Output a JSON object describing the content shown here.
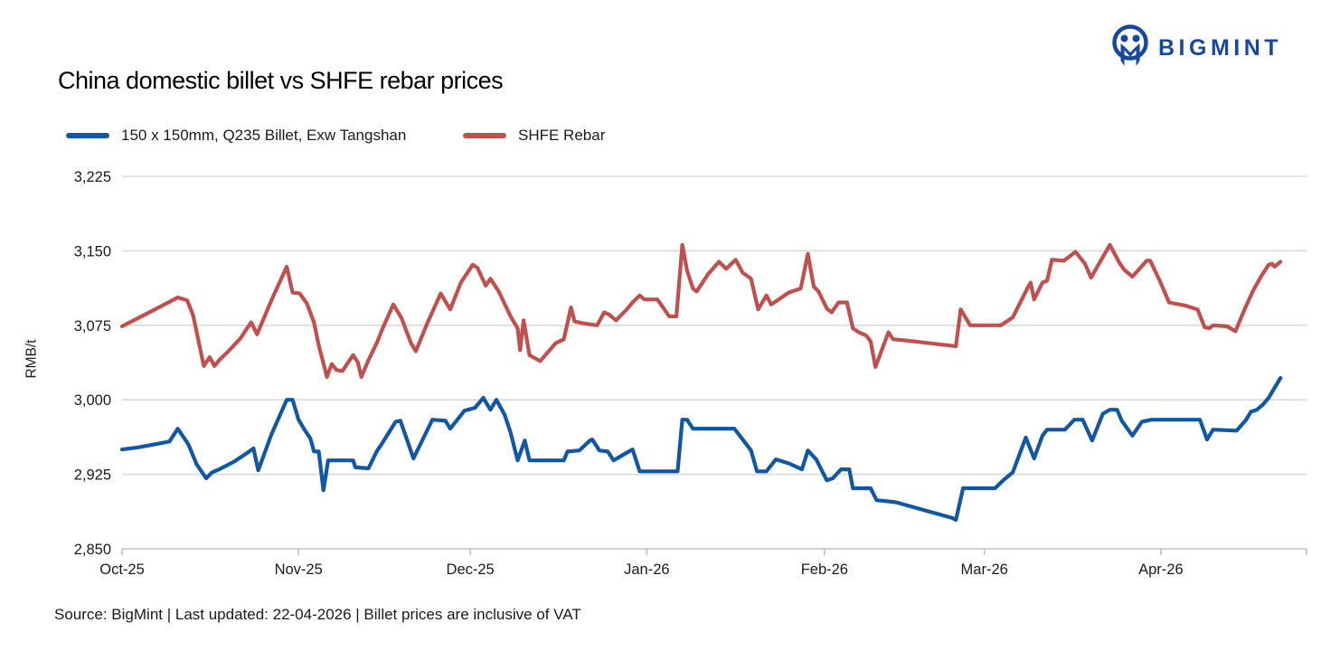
{
  "header": {
    "brand": "BIGMINT"
  },
  "footer": {
    "text": "Source: BigMint | Last updated: 22-04-2026 | Billet prices are inclusive of VAT"
  },
  "colors": {
    "brand_navy": "#17489F",
    "grid": "#D9D9D9",
    "axis": "#C2C2C2",
    "text": "#1A1A1A"
  },
  "chart_data": {
    "type": "line",
    "title": "China domestic billet vs SHFE rebar prices",
    "ylabel": "RMB/t",
    "ylim": [
      2850,
      3225
    ],
    "yticks": [
      2850,
      2925,
      3000,
      3075,
      3150,
      3225
    ],
    "ytick_labels": [
      "2,850",
      "2,925",
      "3,000",
      "3,075",
      "3,150",
      "3,225"
    ],
    "xticks": [
      {
        "label": "Oct-25",
        "pos": 0.0
      },
      {
        "label": "Nov-25",
        "pos": 0.149
      },
      {
        "label": "Dec-25",
        "pos": 0.294
      },
      {
        "label": "Jan-26",
        "pos": 0.443
      },
      {
        "label": "Feb-26",
        "pos": 0.593
      },
      {
        "label": "Mar-26",
        "pos": 0.728
      },
      {
        "label": "Apr-26",
        "pos": 0.877
      }
    ],
    "grid": "horizontal",
    "legend_position": "top-left",
    "x_unit": "fraction of x-axis, daily prices from Oct-25 through 22-04-2026",
    "series": [
      {
        "name": "150 x 150mm, Q235 Billet, Exw Tangshan",
        "color": "#1157A6",
        "points": [
          [
            0.0,
            2950
          ],
          [
            0.013,
            2952
          ],
          [
            0.027,
            2955
          ],
          [
            0.04,
            2958
          ],
          [
            0.047,
            2971
          ],
          [
            0.056,
            2955
          ],
          [
            0.063,
            2935
          ],
          [
            0.071,
            2921
          ],
          [
            0.076,
            2927
          ],
          [
            0.082,
            2930
          ],
          [
            0.095,
            2938
          ],
          [
            0.105,
            2946
          ],
          [
            0.111,
            2951
          ],
          [
            0.115,
            2929
          ],
          [
            0.126,
            2965
          ],
          [
            0.139,
            3000
          ],
          [
            0.144,
            3000
          ],
          [
            0.149,
            2980
          ],
          [
            0.154,
            2970
          ],
          [
            0.159,
            2961
          ],
          [
            0.162,
            2948
          ],
          [
            0.166,
            2948
          ],
          [
            0.17,
            2909
          ],
          [
            0.174,
            2939
          ],
          [
            0.195,
            2939
          ],
          [
            0.197,
            2932
          ],
          [
            0.208,
            2931
          ],
          [
            0.215,
            2948
          ],
          [
            0.22,
            2957
          ],
          [
            0.231,
            2978
          ],
          [
            0.235,
            2979
          ],
          [
            0.246,
            2941
          ],
          [
            0.262,
            2980
          ],
          [
            0.273,
            2979
          ],
          [
            0.277,
            2971
          ],
          [
            0.289,
            2989
          ],
          [
            0.298,
            2992
          ],
          [
            0.305,
            3002
          ],
          [
            0.311,
            2990
          ],
          [
            0.316,
            3000
          ],
          [
            0.323,
            2985
          ],
          [
            0.328,
            2967
          ],
          [
            0.334,
            2939
          ],
          [
            0.34,
            2959
          ],
          [
            0.344,
            2939
          ],
          [
            0.373,
            2939
          ],
          [
            0.376,
            2948
          ],
          [
            0.386,
            2949
          ],
          [
            0.395,
            2959
          ],
          [
            0.397,
            2960
          ],
          [
            0.403,
            2949
          ],
          [
            0.41,
            2948
          ],
          [
            0.415,
            2939
          ],
          [
            0.425,
            2946
          ],
          [
            0.431,
            2950
          ],
          [
            0.437,
            2928
          ],
          [
            0.469,
            2928
          ],
          [
            0.473,
            2980
          ],
          [
            0.477,
            2980
          ],
          [
            0.482,
            2971
          ],
          [
            0.517,
            2971
          ],
          [
            0.531,
            2949
          ],
          [
            0.536,
            2928
          ],
          [
            0.544,
            2928
          ],
          [
            0.552,
            2940
          ],
          [
            0.563,
            2936
          ],
          [
            0.574,
            2930
          ],
          [
            0.579,
            2949
          ],
          [
            0.586,
            2940
          ],
          [
            0.595,
            2919
          ],
          [
            0.6,
            2921
          ],
          [
            0.607,
            2930
          ],
          [
            0.614,
            2930
          ],
          [
            0.617,
            2911
          ],
          [
            0.632,
            2911
          ],
          [
            0.637,
            2899
          ],
          [
            0.653,
            2897
          ],
          [
            0.701,
            2881
          ],
          [
            0.704,
            2879
          ],
          [
            0.71,
            2911
          ],
          [
            0.737,
            2911
          ],
          [
            0.744,
            2919
          ],
          [
            0.752,
            2927
          ],
          [
            0.763,
            2962
          ],
          [
            0.77,
            2941
          ],
          [
            0.777,
            2964
          ],
          [
            0.781,
            2970
          ],
          [
            0.796,
            2970
          ],
          [
            0.804,
            2980
          ],
          [
            0.811,
            2980
          ],
          [
            0.819,
            2959
          ],
          [
            0.828,
            2986
          ],
          [
            0.834,
            2990
          ],
          [
            0.84,
            2990
          ],
          [
            0.844,
            2979
          ],
          [
            0.853,
            2964
          ],
          [
            0.861,
            2978
          ],
          [
            0.869,
            2980
          ],
          [
            0.91,
            2980
          ],
          [
            0.916,
            2960
          ],
          [
            0.921,
            2970
          ],
          [
            0.941,
            2969
          ],
          [
            0.949,
            2980
          ],
          [
            0.953,
            2988
          ],
          [
            0.958,
            2990
          ],
          [
            0.963,
            2995
          ],
          [
            0.968,
            3002
          ],
          [
            0.973,
            3012
          ],
          [
            0.978,
            3022
          ]
        ]
      },
      {
        "name": "SHFE Rebar",
        "color": "#C0504D",
        "points": [
          [
            0.0,
            3074
          ],
          [
            0.023,
            3088
          ],
          [
            0.047,
            3103
          ],
          [
            0.055,
            3100
          ],
          [
            0.06,
            3085
          ],
          [
            0.069,
            3034
          ],
          [
            0.074,
            3043
          ],
          [
            0.078,
            3034
          ],
          [
            0.082,
            3040
          ],
          [
            0.089,
            3048
          ],
          [
            0.1,
            3062
          ],
          [
            0.105,
            3071
          ],
          [
            0.109,
            3078
          ],
          [
            0.114,
            3066
          ],
          [
            0.126,
            3100
          ],
          [
            0.139,
            3134
          ],
          [
            0.144,
            3108
          ],
          [
            0.15,
            3107
          ],
          [
            0.156,
            3097
          ],
          [
            0.162,
            3078
          ],
          [
            0.166,
            3055
          ],
          [
            0.173,
            3023
          ],
          [
            0.177,
            3036
          ],
          [
            0.181,
            3030
          ],
          [
            0.186,
            3029
          ],
          [
            0.195,
            3045
          ],
          [
            0.199,
            3038
          ],
          [
            0.202,
            3023
          ],
          [
            0.208,
            3040
          ],
          [
            0.215,
            3057
          ],
          [
            0.22,
            3072
          ],
          [
            0.229,
            3096
          ],
          [
            0.236,
            3082
          ],
          [
            0.244,
            3057
          ],
          [
            0.248,
            3049
          ],
          [
            0.258,
            3078
          ],
          [
            0.269,
            3107
          ],
          [
            0.277,
            3091
          ],
          [
            0.286,
            3118
          ],
          [
            0.296,
            3136
          ],
          [
            0.3,
            3133
          ],
          [
            0.307,
            3115
          ],
          [
            0.311,
            3122
          ],
          [
            0.318,
            3109
          ],
          [
            0.328,
            3084
          ],
          [
            0.334,
            3072
          ],
          [
            0.336,
            3050
          ],
          [
            0.339,
            3080
          ],
          [
            0.344,
            3045
          ],
          [
            0.35,
            3041
          ],
          [
            0.353,
            3039
          ],
          [
            0.366,
            3057
          ],
          [
            0.373,
            3061
          ],
          [
            0.379,
            3093
          ],
          [
            0.382,
            3079
          ],
          [
            0.389,
            3077
          ],
          [
            0.401,
            3075
          ],
          [
            0.407,
            3088
          ],
          [
            0.411,
            3086
          ],
          [
            0.417,
            3080
          ],
          [
            0.426,
            3091
          ],
          [
            0.431,
            3098
          ],
          [
            0.437,
            3105
          ],
          [
            0.441,
            3101
          ],
          [
            0.452,
            3101
          ],
          [
            0.462,
            3084
          ],
          [
            0.468,
            3084
          ],
          [
            0.473,
            3156
          ],
          [
            0.477,
            3130
          ],
          [
            0.482,
            3112
          ],
          [
            0.485,
            3109
          ],
          [
            0.495,
            3127
          ],
          [
            0.504,
            3139
          ],
          [
            0.51,
            3132
          ],
          [
            0.518,
            3141
          ],
          [
            0.524,
            3128
          ],
          [
            0.531,
            3122
          ],
          [
            0.537,
            3091
          ],
          [
            0.544,
            3105
          ],
          [
            0.548,
            3096
          ],
          [
            0.563,
            3108
          ],
          [
            0.573,
            3112
          ],
          [
            0.579,
            3147
          ],
          [
            0.584,
            3114
          ],
          [
            0.588,
            3109
          ],
          [
            0.595,
            3092
          ],
          [
            0.599,
            3088
          ],
          [
            0.605,
            3098
          ],
          [
            0.612,
            3098
          ],
          [
            0.617,
            3072
          ],
          [
            0.622,
            3068
          ],
          [
            0.628,
            3065
          ],
          [
            0.632,
            3059
          ],
          [
            0.636,
            3033
          ],
          [
            0.647,
            3068
          ],
          [
            0.651,
            3061
          ],
          [
            0.66,
            3060
          ],
          [
            0.704,
            3054
          ],
          [
            0.708,
            3091
          ],
          [
            0.716,
            3075
          ],
          [
            0.742,
            3075
          ],
          [
            0.752,
            3083
          ],
          [
            0.765,
            3114
          ],
          [
            0.767,
            3118
          ],
          [
            0.77,
            3101
          ],
          [
            0.777,
            3118
          ],
          [
            0.781,
            3120
          ],
          [
            0.785,
            3141
          ],
          [
            0.795,
            3140
          ],
          [
            0.805,
            3149
          ],
          [
            0.813,
            3137
          ],
          [
            0.818,
            3123
          ],
          [
            0.834,
            3156
          ],
          [
            0.842,
            3138
          ],
          [
            0.846,
            3131
          ],
          [
            0.853,
            3124
          ],
          [
            0.865,
            3140
          ],
          [
            0.868,
            3140
          ],
          [
            0.876,
            3120
          ],
          [
            0.884,
            3098
          ],
          [
            0.897,
            3095
          ],
          [
            0.908,
            3091
          ],
          [
            0.914,
            3073
          ],
          [
            0.918,
            3072
          ],
          [
            0.921,
            3075
          ],
          [
            0.933,
            3074
          ],
          [
            0.94,
            3069
          ],
          [
            0.948,
            3092
          ],
          [
            0.955,
            3110
          ],
          [
            0.962,
            3125
          ],
          [
            0.968,
            3136
          ],
          [
            0.971,
            3137
          ],
          [
            0.973,
            3134
          ],
          [
            0.978,
            3139
          ]
        ]
      }
    ]
  }
}
